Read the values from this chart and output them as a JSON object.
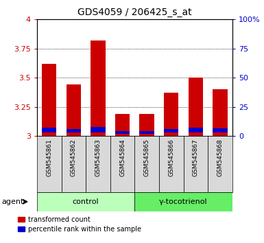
{
  "title": "GDS4059 / 206425_s_at",
  "samples": [
    "GSM545861",
    "GSM545862",
    "GSM545863",
    "GSM545864",
    "GSM545865",
    "GSM545866",
    "GSM545867",
    "GSM545868"
  ],
  "red_values": [
    3.62,
    3.44,
    3.82,
    3.19,
    3.19,
    3.37,
    3.5,
    3.4
  ],
  "blue_values": [
    0.04,
    0.03,
    0.045,
    0.025,
    0.025,
    0.03,
    0.04,
    0.035
  ],
  "blue_base": [
    3.03,
    3.03,
    3.03,
    3.02,
    3.02,
    3.03,
    3.03,
    3.03
  ],
  "groups": [
    {
      "label": "control",
      "span": [
        0,
        4
      ],
      "color": "#ccffcc"
    },
    {
      "label": "γ-tocotrienol",
      "span": [
        4,
        8
      ],
      "color": "#66ff66"
    }
  ],
  "ylim": [
    3.0,
    4.0
  ],
  "yticks": [
    3.0,
    3.25,
    3.5,
    3.75,
    4.0
  ],
  "ytick_labels": [
    "3",
    "3.25",
    "3.5",
    "3.75",
    "4"
  ],
  "right_yticks": [
    0,
    25,
    50,
    75,
    100
  ],
  "right_ytick_labels": [
    "0",
    "25",
    "50",
    "75",
    "100%"
  ],
  "left_tick_color": "#cc0000",
  "right_tick_color": "#0000cc",
  "bar_color_red": "#cc0000",
  "bar_color_blue": "#0000cc",
  "bar_width": 0.6,
  "grid_color": "black",
  "agent_label": "agent",
  "legend_red": "transformed count",
  "legend_blue": "percentile rank within the sample",
  "figsize": [
    3.85,
    3.54
  ],
  "dpi": 100
}
